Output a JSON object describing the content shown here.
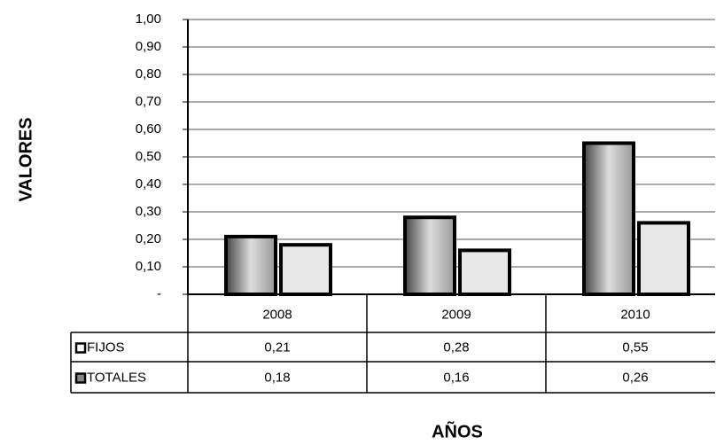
{
  "chart_data": {
    "type": "bar",
    "x_label": "AÑOS",
    "y_label": "VALORES",
    "categories": [
      "2008",
      "2009",
      "2010"
    ],
    "series": [
      {
        "name": "FIJOS",
        "color": "#c8c8c8",
        "values": [
          0.21,
          0.28,
          0.55
        ],
        "value_labels": [
          "0,21",
          "0,28",
          "0,55"
        ]
      },
      {
        "name": "TOTALES",
        "color": "#e8e8e8",
        "values": [
          0.18,
          0.16,
          0.26
        ],
        "value_labels": [
          "0,18",
          "0,16",
          "0,26"
        ]
      }
    ],
    "ylim": [
      0,
      1
    ],
    "yticks": [
      {
        "value": 0,
        "label": "-"
      },
      {
        "value": 0.1,
        "label": "0,10"
      },
      {
        "value": 0.2,
        "label": "0,20"
      },
      {
        "value": 0.3,
        "label": "0,30"
      },
      {
        "value": 0.4,
        "label": "0,40"
      },
      {
        "value": 0.5,
        "label": "0,50"
      },
      {
        "value": 0.6,
        "label": "0,60"
      },
      {
        "value": 0.7,
        "label": "0,70"
      },
      {
        "value": 0.8,
        "label": "0,80"
      },
      {
        "value": 0.9,
        "label": "0,90"
      },
      {
        "value": 1,
        "label": "1,00"
      }
    ],
    "grid": true
  }
}
